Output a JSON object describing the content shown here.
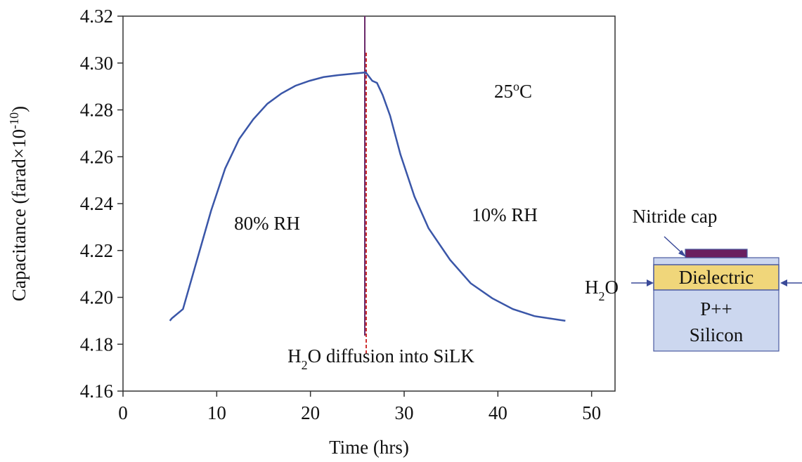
{
  "chart_data": {
    "type": "line",
    "x_label": "Time (hrs)",
    "y_label": [
      {
        "text": "Capacitance (farad×10"
      },
      {
        "text": "-10",
        "sup": true
      },
      {
        "text": ")"
      }
    ],
    "xlim": [
      0,
      52.5
    ],
    "xticks": [
      0,
      10,
      20,
      30,
      40,
      50
    ],
    "ylim": [
      4.16,
      4.32
    ],
    "yticks": [
      4.16,
      4.18,
      {
        "value": 4.2,
        "label": "4.20"
      },
      4.22,
      4.24,
      4.26,
      4.28,
      {
        "value": 4.3,
        "label": "4.30"
      },
      4.32
    ],
    "series": [
      {
        "color": "#3a56a8",
        "x": [
          5,
          5.2,
          6.4,
          7.9,
          9.4,
          10.9,
          12.4,
          13.9,
          15.4,
          16.9,
          18.4,
          19.9,
          21.4,
          22.9,
          24.4,
          25.9,
          26.6,
          27.1,
          27.7,
          28.5,
          29.6,
          31.1,
          32.6,
          34.9,
          37.1,
          39.4,
          41.6,
          43.9,
          47.2
        ],
        "values": [
          4.19,
          4.191,
          4.195,
          4.216,
          4.237,
          4.255,
          4.2676,
          4.276,
          4.2826,
          4.287,
          4.2903,
          4.2924,
          4.294,
          4.2948,
          4.2954,
          4.296,
          4.2924,
          4.2915,
          4.2864,
          4.2775,
          4.261,
          4.243,
          4.2295,
          4.216,
          4.206,
          4.1996,
          4.195,
          4.192,
          4.19
        ]
      }
    ],
    "annotations": [
      [
        {
          "text": "80% RH"
        }
      ],
      [
        {
          "text": "10% RH"
        }
      ],
      [
        {
          "text": "25"
        },
        {
          "text": "o",
          "sup": true
        },
        {
          "text": "C"
        }
      ],
      [
        {
          "text": "H"
        },
        {
          "text": "2",
          "sub": true
        },
        {
          "text": "O diffusion into SiLK"
        }
      ]
    ]
  },
  "inset": {
    "cap_label": "Nitride cap",
    "layer": "Dielectric",
    "substrate": [
      "P++",
      "Silicon"
    ],
    "flow": [
      {
        "text": "H"
      },
      {
        "text": "2",
        "sub": true
      },
      {
        "text": "O"
      }
    ]
  }
}
